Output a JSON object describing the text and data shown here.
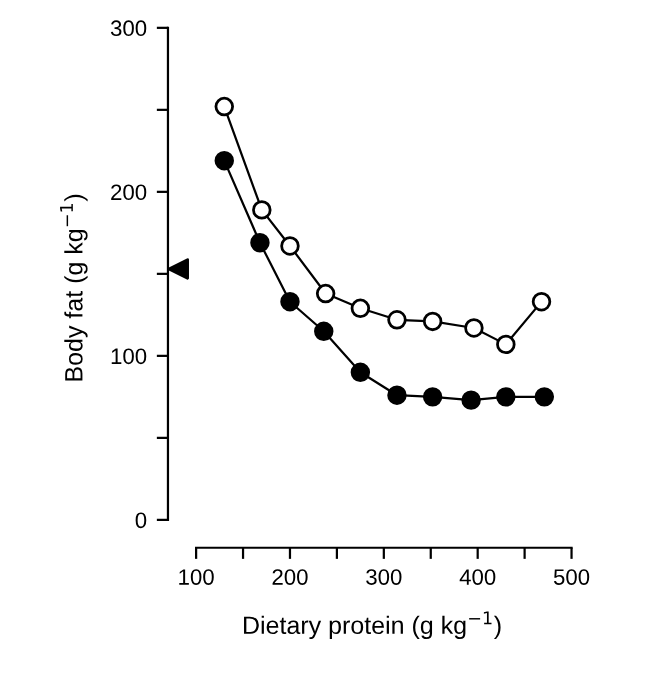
{
  "chart_data": {
    "type": "line",
    "xlabel": "Dietary protein (g kg$^{−1}$)",
    "ylabel": "Body fat (g kg$^{−1}$)",
    "xlim": [
      70,
      505
    ],
    "ylim": [
      -17,
      300
    ],
    "xticks": [
      100,
      {
        "value": 150,
        "label": null
      },
      200,
      {
        "value": 250,
        "label": null
      },
      300,
      {
        "value": 350,
        "label": null
      },
      400,
      {
        "value": 450,
        "label": null
      },
      500
    ],
    "yticks": [
      0,
      {
        "value": 50,
        "label": null
      },
      100,
      {
        "value": 150,
        "label": null
      },
      200,
      {
        "value": 250,
        "label": null
      },
      300
    ],
    "grid": false,
    "legend": false,
    "line_style": "solid",
    "series": [
      {
        "color": "#ffffff",
        "marker": "circle",
        "x": [
          130,
          170,
          200,
          238,
          275,
          314,
          352,
          396,
          430,
          468
        ],
        "values": [
          252,
          189,
          167,
          138,
          129,
          122,
          121,
          117,
          107,
          133
        ]
      },
      {
        "color": "#000000",
        "marker": "circle",
        "x": [
          130,
          168,
          200,
          236,
          275,
          314,
          352,
          393,
          430,
          471
        ],
        "values": [
          219,
          169,
          133,
          115,
          90,
          76,
          75,
          73,
          75,
          75
        ]
      },
      {
        "type": "scatter",
        "color": "#000000",
        "marker": "triangle",
        "x": [
          81
        ],
        "values": [
          153
        ]
      }
    ]
  }
}
